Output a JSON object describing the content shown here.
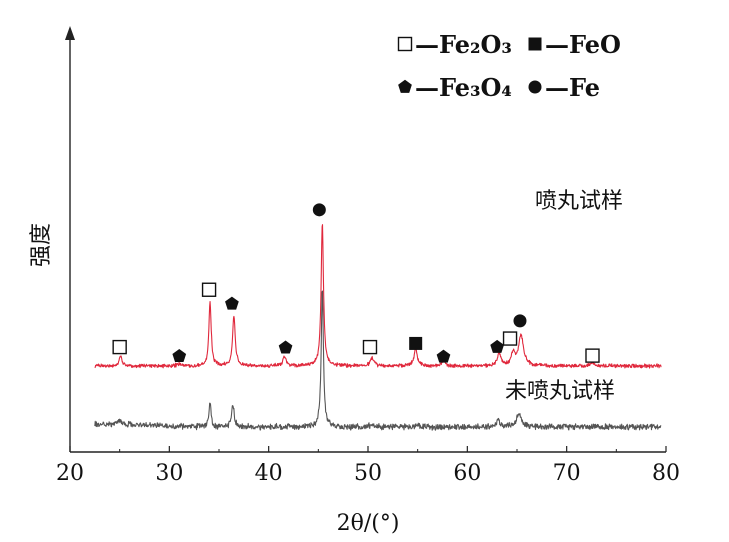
{
  "chart_data": {
    "type": "line",
    "xlabel": "2θ/(°)",
    "ylabel": "强度",
    "xlim": [
      20,
      80
    ],
    "xticks": [
      "20",
      "30",
      "40",
      "50",
      "60",
      "70",
      "80"
    ],
    "yticks_shown": false,
    "grid": false,
    "legend_position": "top-right",
    "legend": [
      {
        "symbol": "open-square",
        "label": "—Fe₂O₃"
      },
      {
        "symbol": "filled-square",
        "label": "—FeO"
      },
      {
        "symbol": "pentagon",
        "label": "—Fe₃O₄"
      },
      {
        "symbol": "circle",
        "label": "—Fe"
      }
    ],
    "series": [
      {
        "name": "喷丸试样",
        "color": "#e0283c",
        "baseline": 1.0,
        "peaks": [
          {
            "x": 25.1,
            "h": 0.16,
            "w": 0.18
          },
          {
            "x": 31.0,
            "h": 0.03,
            "w": 0.25
          },
          {
            "x": 34.1,
            "h": 1.04,
            "w": 0.14
          },
          {
            "x": 36.5,
            "h": 0.82,
            "w": 0.16
          },
          {
            "x": 41.6,
            "h": 0.15,
            "w": 0.18
          },
          {
            "x": 45.4,
            "h": 2.35,
            "w": 0.14
          },
          {
            "x": 50.4,
            "h": 0.13,
            "w": 0.2
          },
          {
            "x": 54.8,
            "h": 0.27,
            "w": 0.2
          },
          {
            "x": 57.6,
            "h": 0.09,
            "w": 0.22
          },
          {
            "x": 63.2,
            "h": 0.21,
            "w": 0.2
          },
          {
            "x": 64.6,
            "h": 0.2,
            "w": 0.22
          },
          {
            "x": 65.4,
            "h": 0.5,
            "w": 0.3
          },
          {
            "x": 72.6,
            "h": 0.07,
            "w": 0.2
          }
        ]
      },
      {
        "name": "未喷丸试样",
        "color": "#555555",
        "baseline": 0.0,
        "peaks": [
          {
            "x": 25.0,
            "h": 0.06,
            "w": 0.2
          },
          {
            "x": 34.1,
            "h": 0.4,
            "w": 0.13
          },
          {
            "x": 36.4,
            "h": 0.38,
            "w": 0.15
          },
          {
            "x": 45.4,
            "h": 2.28,
            "w": 0.13
          },
          {
            "x": 50.4,
            "h": 0.05,
            "w": 0.2
          },
          {
            "x": 55.0,
            "h": 0.04,
            "w": 0.2
          },
          {
            "x": 63.1,
            "h": 0.12,
            "w": 0.22
          },
          {
            "x": 65.2,
            "h": 0.22,
            "w": 0.3
          }
        ]
      }
    ],
    "markers": [
      {
        "symbol": "open-square",
        "x": 25.0,
        "y": 1.31
      },
      {
        "symbol": "pentagon",
        "x": 31.0,
        "y": 1.16
      },
      {
        "symbol": "open-square",
        "x": 34.0,
        "y": 2.25
      },
      {
        "symbol": "pentagon",
        "x": 36.3,
        "y": 2.02
      },
      {
        "symbol": "pentagon",
        "x": 41.7,
        "y": 1.3
      },
      {
        "symbol": "circle",
        "x": 45.1,
        "y": 3.56
      },
      {
        "symbol": "open-square",
        "x": 50.2,
        "y": 1.31
      },
      {
        "symbol": "filled-square",
        "x": 54.8,
        "y": 1.37
      },
      {
        "symbol": "pentagon",
        "x": 57.6,
        "y": 1.15
      },
      {
        "symbol": "pentagon",
        "x": 63.0,
        "y": 1.31
      },
      {
        "symbol": "open-square",
        "x": 64.3,
        "y": 1.45
      },
      {
        "symbol": "circle",
        "x": 65.3,
        "y": 1.74
      },
      {
        "symbol": "open-square",
        "x": 72.6,
        "y": 1.17
      }
    ]
  }
}
